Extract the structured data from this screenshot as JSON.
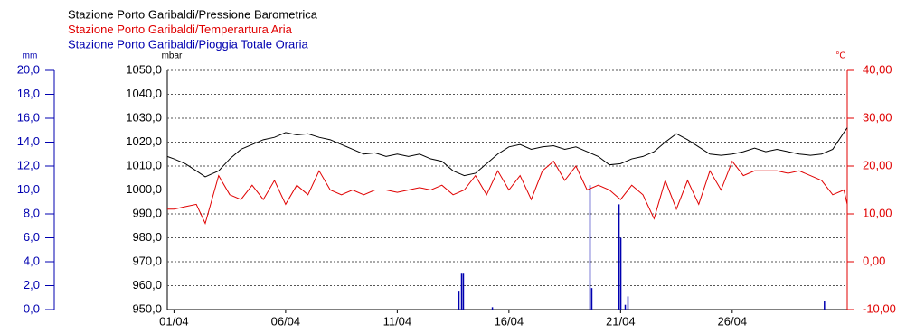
{
  "chart_data": {
    "type": "combo",
    "xlim": [
      0.7,
      31.15
    ],
    "xticks": [
      {
        "value": 1,
        "label": "01/04"
      },
      {
        "value": 6,
        "label": "06/04"
      },
      {
        "value": 11,
        "label": "11/04"
      },
      {
        "value": 16,
        "label": "16/04"
      },
      {
        "value": 21,
        "label": "21/04"
      },
      {
        "value": 26,
        "label": "26/04"
      }
    ],
    "ylabel": "mbar",
    "ylim": [
      950,
      1050
    ],
    "yticks": [
      {
        "value": 950,
        "label": "950,0"
      },
      {
        "value": 960,
        "label": "960,0"
      },
      {
        "value": 970,
        "label": "970,0"
      },
      {
        "value": 980,
        "label": "980,0"
      },
      {
        "value": 990,
        "label": "990,0"
      },
      {
        "value": 1000,
        "label": "1000,0"
      },
      {
        "value": 1010,
        "label": "1010,0"
      },
      {
        "value": 1020,
        "label": "1020,0"
      },
      {
        "value": 1030,
        "label": "1030,0"
      },
      {
        "value": 1040,
        "label": "1040,0"
      },
      {
        "value": 1050,
        "label": "1050,0"
      }
    ],
    "y2label": "°C",
    "y2lim": [
      -10,
      40
    ],
    "y2ticks": [
      {
        "value": -10,
        "label": "-10,00"
      },
      {
        "value": 0,
        "label": "0,00"
      },
      {
        "value": 10,
        "label": "10,00"
      },
      {
        "value": 20,
        "label": "20,00"
      },
      {
        "value": 30,
        "label": "30,00"
      },
      {
        "value": 40,
        "label": "40,00"
      }
    ],
    "y3label": "mm",
    "y3lim": [
      0,
      20
    ],
    "y3ticks": [
      {
        "value": 0,
        "label": "0,0"
      },
      {
        "value": 2,
        "label": "2,0"
      },
      {
        "value": 4,
        "label": "4,0"
      },
      {
        "value": 6,
        "label": "6,0"
      },
      {
        "value": 8,
        "label": "8,0"
      },
      {
        "value": 10,
        "label": "10,0"
      },
      {
        "value": 12,
        "label": "12,0"
      },
      {
        "value": 14,
        "label": "14,0"
      },
      {
        "value": 16,
        "label": "16,0"
      },
      {
        "value": 18,
        "label": "18,0"
      },
      {
        "value": 20,
        "label": "20,0"
      }
    ],
    "grid": true,
    "series": [
      {
        "name": "Stazione Porto Garibaldi/Pressione Barometrica",
        "color": "#000000",
        "type": "line",
        "axis": "y",
        "x": [
          0.7,
          1,
          1.5,
          2,
          2.4,
          3,
          3.5,
          4,
          4.5,
          5,
          5.5,
          6,
          6.5,
          7,
          7.5,
          8,
          8.5,
          9,
          9.5,
          10,
          10.5,
          11,
          11.5,
          12,
          12.5,
          13,
          13.5,
          14,
          14.5,
          15,
          15.5,
          16,
          16.5,
          17,
          17.5,
          18,
          18.5,
          19,
          19.5,
          20,
          20.5,
          21,
          21.5,
          22,
          22.5,
          23,
          23.5,
          24,
          24.5,
          25,
          25.5,
          26,
          26.5,
          27,
          27.5,
          28,
          28.5,
          29,
          29.5,
          30,
          30.5,
          31,
          31.15
        ],
        "values": [
          1014,
          1013,
          1011,
          1008,
          1005.5,
          1008,
          1013,
          1017,
          1019,
          1021,
          1022,
          1024,
          1023,
          1023.5,
          1022,
          1021,
          1019,
          1017,
          1015,
          1015.5,
          1014,
          1015,
          1014,
          1015,
          1013,
          1012,
          1008,
          1006,
          1007,
          1011,
          1015,
          1018,
          1019,
          1017,
          1018,
          1018.5,
          1017,
          1018,
          1016,
          1014,
          1010.5,
          1011,
          1013,
          1014,
          1016,
          1020,
          1023.5,
          1021,
          1018,
          1015,
          1014.5,
          1015,
          1016,
          1017.5,
          1016,
          1017,
          1016,
          1015,
          1014.5,
          1015,
          1017,
          1024,
          1026
        ]
      },
      {
        "name": "Stazione Porto Garibaldi/Temperartura Aria",
        "color": "#e00000",
        "type": "line",
        "axis": "y2",
        "x": [
          0.7,
          1,
          1.5,
          2,
          2.4,
          3,
          3.5,
          4,
          4.5,
          5,
          5.5,
          6,
          6.5,
          7,
          7.5,
          8,
          8.5,
          9,
          9.5,
          10,
          10.5,
          11,
          11.5,
          12,
          12.5,
          13,
          13.5,
          14,
          14.5,
          15,
          15.5,
          16,
          16.5,
          17,
          17.5,
          18,
          18.5,
          19,
          19.5,
          20,
          20.5,
          21,
          21.5,
          22,
          22.5,
          23,
          23.5,
          24,
          24.5,
          25,
          25.5,
          26,
          26.5,
          27,
          27.5,
          28,
          28.5,
          29,
          29.5,
          30,
          30.5,
          31,
          31.15
        ],
        "values": [
          11,
          11,
          11.5,
          12,
          8,
          18,
          14,
          13,
          16,
          13,
          17,
          12,
          16,
          14,
          19,
          15,
          14,
          15,
          14,
          15,
          15,
          14.5,
          15,
          15.5,
          15,
          16,
          14,
          15,
          18,
          14,
          19,
          15,
          18,
          13,
          19,
          21,
          17,
          20,
          15,
          16,
          15,
          13,
          16,
          14,
          9,
          17,
          11,
          17,
          12,
          19,
          15,
          21,
          18,
          19,
          19,
          19,
          18.5,
          19,
          18,
          17,
          14,
          15,
          12
        ]
      },
      {
        "name": "Stazione Porto Garibaldi/Pioggia Totale  Oraria",
        "color": "#0000b0",
        "type": "bar",
        "axis": "y3",
        "x": [
          13.77,
          13.89,
          13.97,
          15.27,
          19.64,
          19.72,
          20.94,
          21.02,
          21.22,
          21.34,
          30.14
        ],
        "values": [
          1.5,
          3.0,
          3.0,
          0.2,
          10.4,
          1.8,
          8.8,
          6.0,
          0.4,
          1.1,
          0.7
        ]
      }
    ]
  }
}
